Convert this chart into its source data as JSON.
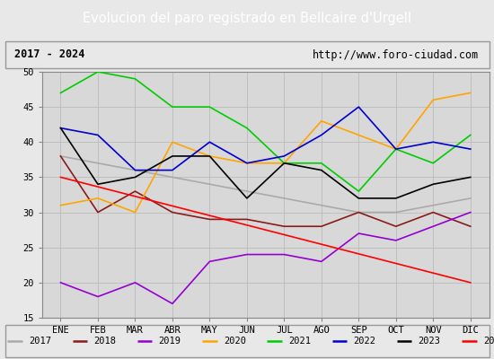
{
  "title": "Evolucion del paro registrado en Bellcaire d'Urgell",
  "subtitle_left": "2017 - 2024",
  "subtitle_right": "http://www.foro-ciudad.com",
  "months": [
    "ENE",
    "FEB",
    "MAR",
    "ABR",
    "MAY",
    "JUN",
    "JUL",
    "AGO",
    "SEP",
    "OCT",
    "NOV",
    "DIC"
  ],
  "ylim": [
    15,
    50
  ],
  "yticks": [
    15,
    20,
    25,
    30,
    35,
    40,
    45,
    50
  ],
  "series": {
    "2017": {
      "color": "#aaaaaa",
      "values": [
        38,
        37,
        36,
        35,
        34,
        33,
        32,
        31,
        30,
        30,
        31,
        32
      ]
    },
    "2018": {
      "color": "#8b1a1a",
      "values": [
        38,
        30,
        33,
        30,
        29,
        29,
        28,
        28,
        30,
        28,
        30,
        28
      ]
    },
    "2019": {
      "color": "#9400d3",
      "values": [
        20,
        18,
        20,
        17,
        23,
        24,
        24,
        23,
        27,
        26,
        28,
        30
      ]
    },
    "2020": {
      "color": "#ffa500",
      "values": [
        31,
        32,
        30,
        40,
        38,
        37,
        37,
        43,
        41,
        39,
        46,
        47
      ]
    },
    "2021": {
      "color": "#00cc00",
      "values": [
        47,
        50,
        49,
        45,
        45,
        42,
        37,
        37,
        33,
        39,
        37,
        41
      ]
    },
    "2022": {
      "color": "#0000cc",
      "values": [
        42,
        41,
        36,
        36,
        40,
        37,
        38,
        41,
        45,
        39,
        40,
        39
      ]
    },
    "2023": {
      "color": "#000000",
      "values": [
        42,
        34,
        35,
        38,
        38,
        32,
        37,
        36,
        32,
        32,
        34,
        35
      ]
    },
    "2024": {
      "color": "#ff0000",
      "values": [
        35,
        null,
        null,
        null,
        null,
        null,
        null,
        null,
        null,
        null,
        null,
        20
      ]
    }
  },
  "title_bg": "#4472c4",
  "title_color": "#ffffff",
  "title_fontsize": 10.5,
  "subtitle_fontsize": 8.5,
  "legend_fontsize": 7.5,
  "axis_fontsize": 7.5,
  "plot_bg": "#e8e8e8",
  "chart_bg": "#d8d8d8"
}
